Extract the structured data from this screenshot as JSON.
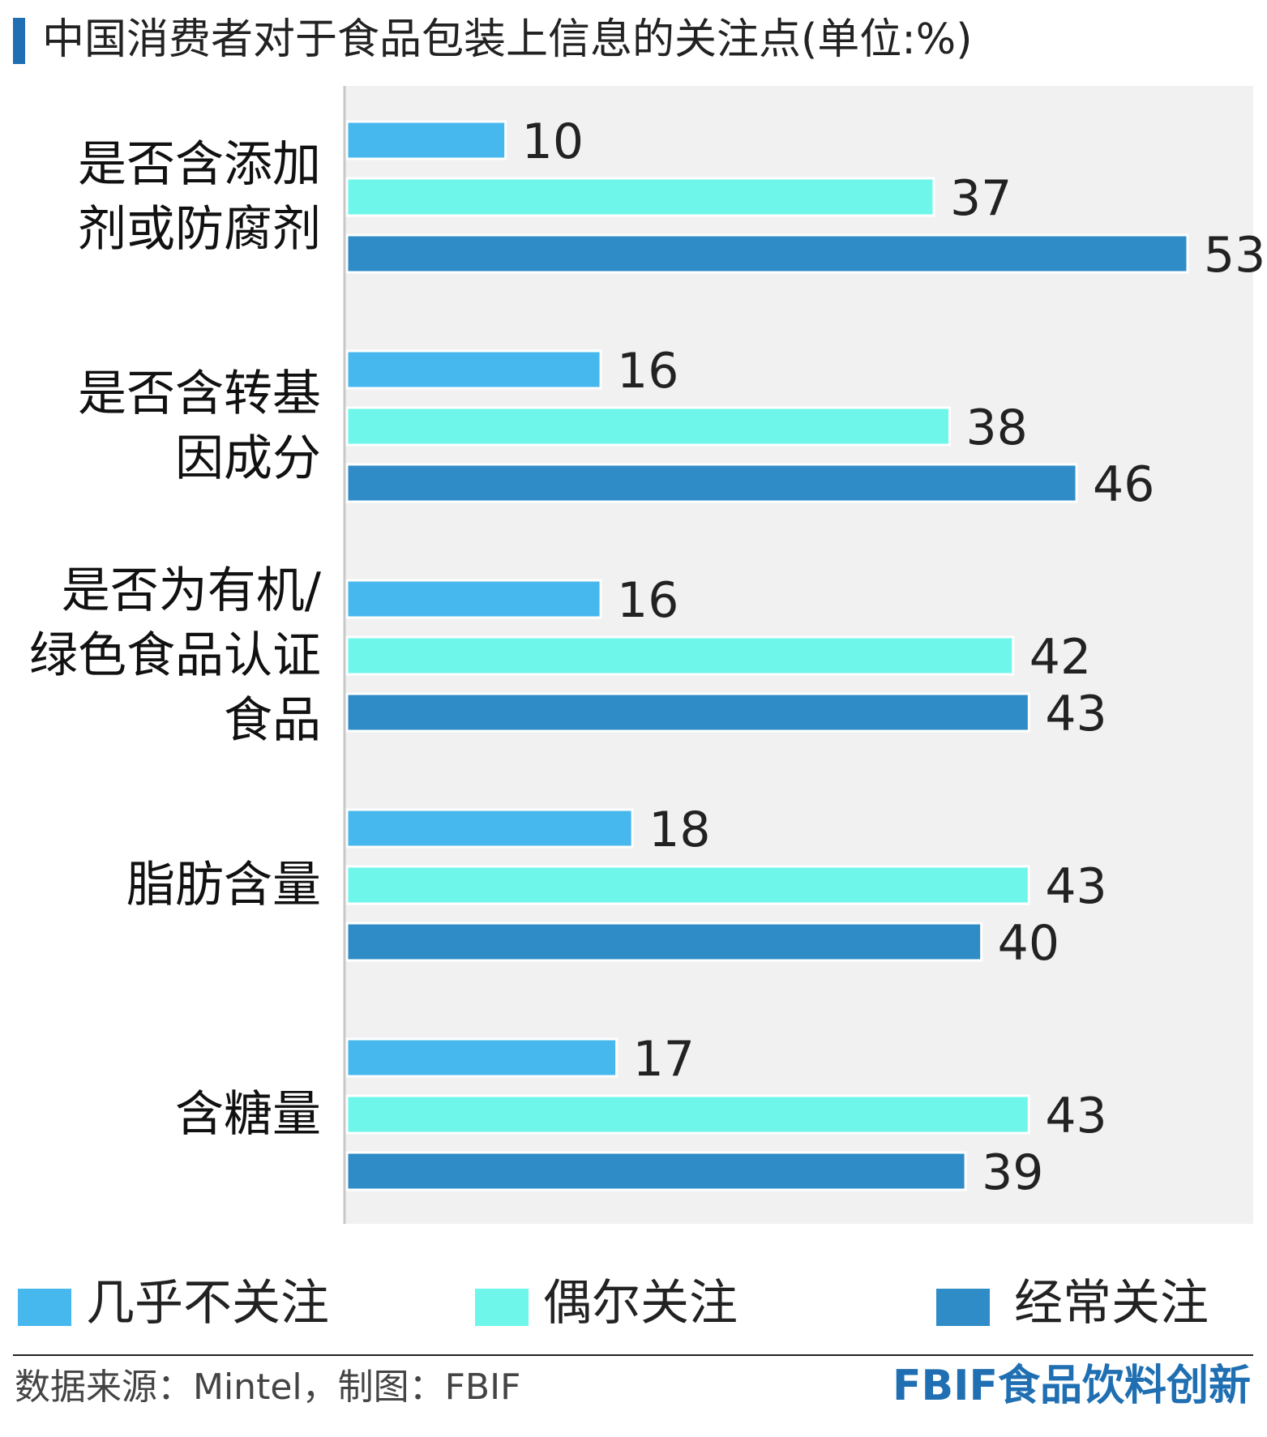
{
  "title": "中国消费者对于食品包装上信息的关注点(单位:%)",
  "chart_data": {
    "type": "bar",
    "orientation": "horizontal",
    "title": "中国消费者对于食品包装上信息的关注点(单位:%)",
    "unit": "%",
    "categories": [
      [
        "是否含添加",
        "剂或防腐剂"
      ],
      [
        "是否含转基",
        "因成分"
      ],
      [
        "是否为有机/",
        "绿色食品认证",
        "食品"
      ],
      [
        "脂肪含量"
      ],
      [
        "含糖量"
      ]
    ],
    "series": [
      {
        "name": "几乎不关注",
        "color": "#47b8ee",
        "values": [
          10,
          16,
          16,
          18,
          17
        ]
      },
      {
        "name": "偶尔关注",
        "color": "#6ef6ea",
        "values": [
          37,
          38,
          42,
          43,
          43
        ]
      },
      {
        "name": "经常关注",
        "color": "#2f8cc7",
        "values": [
          53,
          46,
          43,
          40,
          39
        ]
      }
    ],
    "xlim": [
      0,
      53
    ],
    "grid": false,
    "legend": "bottom",
    "background": "#f1f1f1"
  },
  "footer": {
    "source": "数据来源：Mintel，制图：FBIF",
    "brand": "FBIF食品饮料创新"
  }
}
